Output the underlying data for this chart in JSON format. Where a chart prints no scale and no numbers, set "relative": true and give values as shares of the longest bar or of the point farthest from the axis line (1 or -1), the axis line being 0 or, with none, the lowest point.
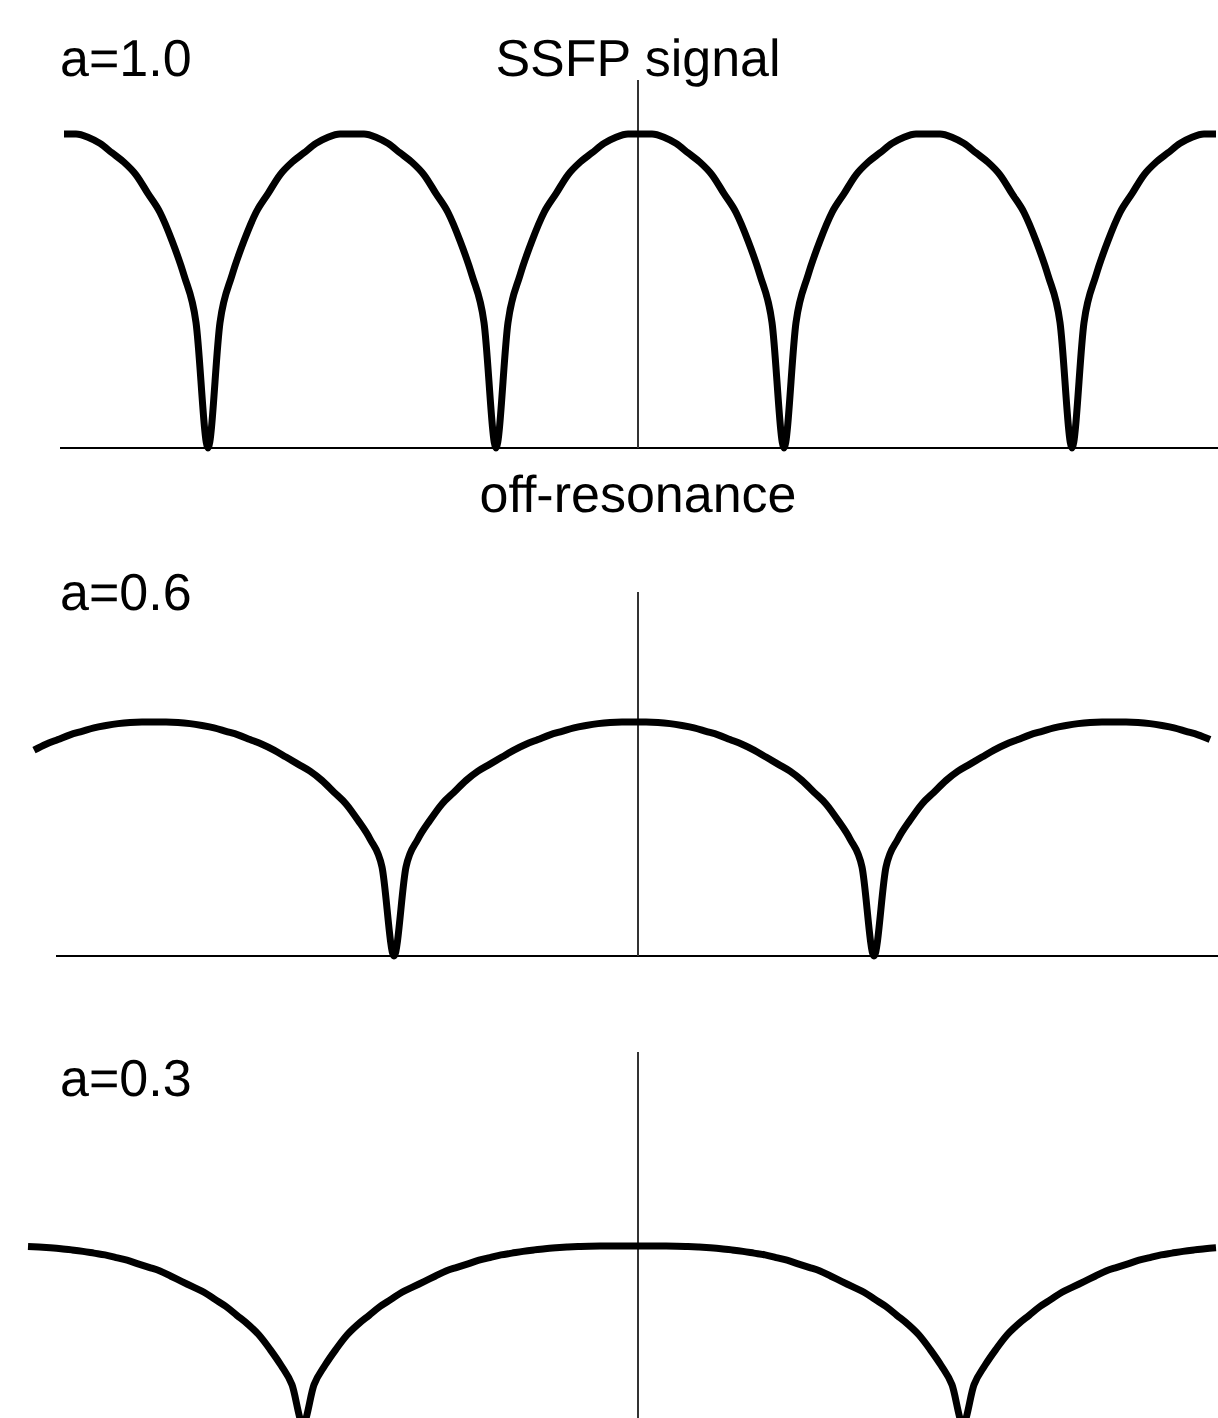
{
  "chart_data": [
    {
      "type": "line",
      "title": "a=1.0",
      "ylabel": "SSFP signal",
      "xlabel": "off-resonance",
      "relative": true,
      "color": "#000000",
      "categories": [
        null,
        null,
        null,
        null,
        null,
        null,
        null,
        null,
        null,
        null,
        null,
        null,
        null,
        null,
        null,
        null,
        null,
        null,
        null,
        null,
        null,
        null,
        null,
        null,
        null,
        null,
        null,
        null,
        null,
        null,
        null,
        null,
        null,
        null,
        null,
        null,
        null,
        null,
        null,
        null,
        null,
        null,
        null,
        null,
        null,
        null,
        null,
        null,
        null,
        null,
        null,
        null,
        null,
        null,
        null,
        null,
        null,
        null,
        null,
        null,
        null,
        null,
        null,
        null,
        null,
        null,
        null,
        null,
        null,
        null,
        null,
        null,
        null,
        null,
        null,
        null,
        null,
        null,
        null,
        null,
        null,
        null,
        null,
        null,
        null,
        null,
        null,
        null,
        null,
        null,
        null,
        null,
        null,
        null,
        null,
        null,
        null
      ],
      "values": [
        1,
        1,
        0.99,
        0.97,
        0.94,
        0.91,
        0.87,
        0.81,
        0.75,
        0.66,
        0.55,
        0.4,
        0,
        0.4,
        0.55,
        0.66,
        0.75,
        0.81,
        0.87,
        0.91,
        0.94,
        0.97,
        0.99,
        1,
        1,
        1,
        0.99,
        0.97,
        0.94,
        0.91,
        0.87,
        0.81,
        0.75,
        0.66,
        0.55,
        0.4,
        0,
        0.4,
        0.55,
        0.66,
        0.75,
        0.81,
        0.87,
        0.91,
        0.94,
        0.97,
        0.99,
        1,
        1,
        1,
        0.99,
        0.97,
        0.94,
        0.91,
        0.87,
        0.81,
        0.75,
        0.66,
        0.55,
        0.4,
        0,
        0.4,
        0.55,
        0.66,
        0.75,
        0.81,
        0.87,
        0.91,
        0.94,
        0.97,
        0.99,
        1,
        1,
        1,
        0.99,
        0.97,
        0.94,
        0.91,
        0.87,
        0.81,
        0.75,
        0.66,
        0.55,
        0.4,
        0,
        0.4,
        0.55,
        0.66,
        0.75,
        0.81,
        0.87,
        0.91,
        0.94,
        0.97,
        0.99,
        1,
        1
      ]
    },
    {
      "type": "line",
      "title": "a=0.6",
      "relative": true,
      "color": "#000000",
      "categories": [
        null,
        null,
        null,
        null,
        null,
        null,
        null,
        null,
        null,
        null,
        null,
        null,
        null,
        null,
        null,
        null,
        null,
        null,
        null,
        null,
        null,
        null,
        null,
        null,
        null,
        null,
        null,
        null,
        null,
        null,
        null,
        null,
        null,
        null,
        null,
        null,
        null,
        null,
        null,
        null,
        null,
        null,
        null,
        null,
        null,
        null,
        null,
        null,
        null,
        null,
        null,
        null,
        null,
        null,
        null,
        null,
        null,
        null,
        null,
        null,
        null,
        null,
        null,
        null,
        null,
        null,
        null,
        null,
        null,
        null,
        null,
        null,
        null,
        null,
        null,
        null,
        null,
        null,
        null,
        null,
        null,
        null,
        null,
        null,
        null,
        null,
        null,
        null,
        null,
        null,
        null,
        null,
        null,
        null,
        null,
        null,
        null,
        null,
        null
      ],
      "values": [
        0.88,
        0.905,
        0.925,
        0.945,
        0.96,
        0.975,
        0.985,
        0.993,
        0.998,
        1,
        1,
        1,
        0.998,
        0.993,
        0.985,
        0.975,
        0.96,
        0.945,
        0.925,
        0.905,
        0.88,
        0.85,
        0.82,
        0.79,
        0.75,
        0.7,
        0.65,
        0.58,
        0.5,
        0.38,
        0,
        0.38,
        0.5,
        0.58,
        0.65,
        0.7,
        0.75,
        0.79,
        0.82,
        0.85,
        0.88,
        0.905,
        0.925,
        0.945,
        0.96,
        0.975,
        0.985,
        0.993,
        0.998,
        1,
        1,
        1,
        0.998,
        0.993,
        0.985,
        0.975,
        0.96,
        0.945,
        0.925,
        0.905,
        0.88,
        0.85,
        0.82,
        0.79,
        0.75,
        0.7,
        0.65,
        0.58,
        0.5,
        0.38,
        0,
        0.38,
        0.5,
        0.58,
        0.65,
        0.7,
        0.75,
        0.79,
        0.82,
        0.85,
        0.88,
        0.905,
        0.925,
        0.945,
        0.96,
        0.975,
        0.985,
        0.993,
        0.998,
        1,
        1,
        1,
        0.998,
        0.993,
        0.985,
        0.975,
        0.96,
        0.945,
        0.925
      ]
    },
    {
      "type": "line",
      "title": "a=0.3",
      "relative": true,
      "color": "#000000",
      "categories": [
        null,
        null,
        null,
        null,
        null,
        null,
        null,
        null,
        null,
        null,
        null,
        null,
        null,
        null,
        null,
        null,
        null,
        null,
        null,
        null,
        null,
        null,
        null,
        null,
        null,
        null,
        null,
        null,
        null,
        null,
        null,
        null,
        null,
        null,
        null,
        null,
        null,
        null,
        null,
        null,
        null,
        null,
        null,
        null,
        null,
        null,
        null,
        null,
        null,
        null,
        null,
        null,
        null,
        null,
        null,
        null,
        null,
        null,
        null,
        null,
        null,
        null,
        null,
        null,
        null,
        null,
        null,
        null,
        null,
        null,
        null,
        null,
        null,
        null,
        null,
        null,
        null,
        null,
        null,
        null,
        null,
        null,
        null,
        null,
        null,
        null,
        null,
        null,
        null,
        null,
        null,
        null,
        null,
        null,
        null,
        null,
        null,
        null,
        null,
        null,
        null,
        null,
        null,
        null,
        null,
        null,
        null,
        null,
        null
      ],
      "values": [
        0.997,
        0.994,
        0.99,
        0.985,
        0.978,
        0.97,
        0.96,
        0.95,
        0.935,
        0.92,
        0.9,
        0.88,
        0.86,
        0.83,
        0.8,
        0.77,
        0.74,
        0.7,
        0.66,
        0.61,
        0.56,
        0.5,
        0.42,
        0.33,
        0.22,
        0,
        0.22,
        0.33,
        0.42,
        0.5,
        0.56,
        0.61,
        0.66,
        0.7,
        0.74,
        0.77,
        0.8,
        0.83,
        0.86,
        0.88,
        0.9,
        0.92,
        0.935,
        0.95,
        0.96,
        0.97,
        0.978,
        0.985,
        0.99,
        0.994,
        0.997,
        0.999,
        1,
        1,
        1,
        1,
        1,
        1,
        1,
        0.999,
        0.997,
        0.994,
        0.99,
        0.985,
        0.978,
        0.97,
        0.96,
        0.95,
        0.935,
        0.92,
        0.9,
        0.88,
        0.86,
        0.83,
        0.8,
        0.77,
        0.74,
        0.7,
        0.66,
        0.61,
        0.56,
        0.5,
        0.42,
        0.33,
        0.22,
        0,
        0.22,
        0.33,
        0.42,
        0.5,
        0.56,
        0.61,
        0.66,
        0.7,
        0.74,
        0.77,
        0.8,
        0.83,
        0.86,
        0.88,
        0.9,
        0.92,
        0.935,
        0.95,
        0.96,
        0.97,
        0.978,
        0.985,
        0.99
      ]
    }
  ]
}
